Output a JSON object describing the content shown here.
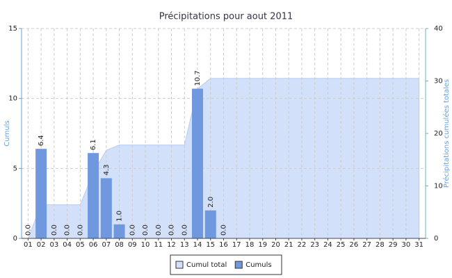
{
  "chart_data": {
    "type": "bar",
    "title": "Précipitations pour aout 2011",
    "ylabel": "Cumuls",
    "y2label": "Précipitations cumulées totales",
    "categories": [
      "01",
      "02",
      "03",
      "04",
      "05",
      "06",
      "07",
      "08",
      "09",
      "10",
      "11",
      "12",
      "13",
      "14",
      "15",
      "16",
      "17",
      "18",
      "19",
      "20",
      "21",
      "22",
      "23",
      "24",
      "25",
      "26",
      "27",
      "28",
      "29",
      "30",
      "31"
    ],
    "series": [
      {
        "name": "Cumul total",
        "type": "area",
        "axis": "y2",
        "color": "#d2e0fa",
        "values": [
          0,
          6.4,
          6.4,
          6.4,
          6.4,
          12.5,
          16.8,
          17.8,
          17.8,
          17.8,
          17.8,
          17.8,
          17.8,
          28.5,
          30.5,
          30.5,
          30.5,
          30.5,
          30.5,
          30.5,
          30.5,
          30.5,
          30.5,
          30.5,
          30.5,
          30.5,
          30.5,
          30.5,
          30.5,
          30.5,
          30.5
        ]
      },
      {
        "name": "Cumuls",
        "type": "bar",
        "color": "#6f98df",
        "values": [
          0,
          6.4,
          0,
          0,
          0,
          6.1,
          4.3,
          1.0,
          0,
          0,
          0,
          0,
          0,
          10.7,
          2.0,
          0,
          null,
          null,
          null,
          null,
          null,
          null,
          null,
          null,
          null,
          null,
          null,
          null,
          null,
          null,
          null
        ],
        "value_labels": [
          "0.0",
          "6.4",
          "0.0",
          "0.0",
          "0.0",
          "6.1",
          "4.3",
          "1.0",
          "0.0",
          "0.0",
          "0.0",
          "0.0",
          "0.0",
          "10.7",
          "2.0",
          "0.0",
          null,
          null,
          null,
          null,
          null,
          null,
          null,
          null,
          null,
          null,
          null,
          null,
          null,
          null,
          null
        ]
      }
    ],
    "ylim": [
      0,
      15
    ],
    "yticks": [
      0,
      5,
      10,
      15
    ],
    "y2lim": [
      0,
      40
    ],
    "y2ticks": [
      0,
      10,
      20,
      30,
      40
    ],
    "grid": true,
    "legend": "bottom"
  }
}
